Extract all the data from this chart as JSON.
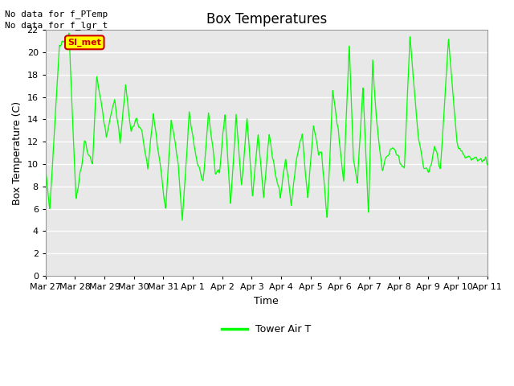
{
  "title": "Box Temperatures",
  "xlabel": "Time",
  "ylabel": "Box Temperature (C)",
  "text_top_left": [
    "No data for f_PTemp",
    "No data for f_lgr_t"
  ],
  "annotation_label": "SI_met",
  "annotation_color": "#cc0000",
  "annotation_bg": "#ffff00",
  "line_color": "#00ff00",
  "line_label": "Tower Air T",
  "ylim": [
    0,
    22
  ],
  "yticks": [
    0,
    2,
    4,
    6,
    8,
    10,
    12,
    14,
    16,
    18,
    20,
    22
  ],
  "xtick_labels": [
    "Mar 27",
    "Mar 28",
    "Mar 29",
    "Mar 30",
    "Mar 31",
    "Apr 1",
    "Apr 2",
    "Apr 3",
    "Apr 4",
    "Apr 5",
    "Apr 6",
    "Apr 7",
    "Apr 8",
    "Apr 9",
    "Apr 10",
    "Apr 11"
  ],
  "plot_bg": "#e8e8e8",
  "grid_color": "#ffffff",
  "fig_color": "#ffffff",
  "title_fontsize": 12,
  "axis_fontsize": 9,
  "tick_fontsize": 8
}
